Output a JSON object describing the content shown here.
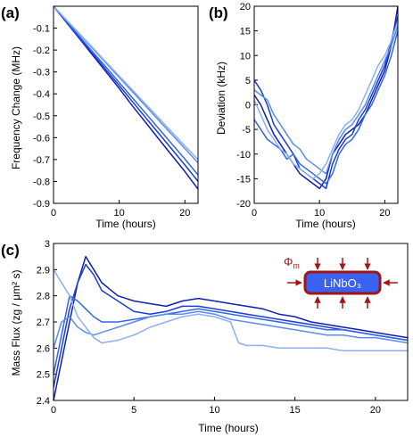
{
  "colors": {
    "series": [
      "#1020B0",
      "#1C3CD6",
      "#2F67E8",
      "#5A8CF0",
      "#8AB0F5"
    ],
    "inset_fill": "#3A62F0",
    "inset_stroke": "#A31515",
    "flux_symbol": "#A31515"
  },
  "chart_data": [
    {
      "panel_label": "(a)",
      "type": "line",
      "title": "",
      "xlabel": "Time (hours)",
      "ylabel": "Frequency Change (MHz)",
      "xlim": [
        0,
        22
      ],
      "ylim": [
        -0.9,
        0
      ],
      "xticks": [
        "0",
        "10",
        "20"
      ],
      "yticks": [
        "-0.1",
        "-0.2",
        "-0.3",
        "-0.4",
        "-0.5",
        "-0.6",
        "-0.7",
        "-0.8",
        "-0.9"
      ],
      "grid": false,
      "series": [
        {
          "x": [
            0,
            2,
            4,
            6,
            8,
            10,
            12,
            14,
            16,
            18,
            20,
            22
          ],
          "y": [
            0,
            -0.075,
            -0.15,
            -0.225,
            -0.3,
            -0.375,
            -0.455,
            -0.53,
            -0.605,
            -0.68,
            -0.755,
            -0.835
          ]
        },
        {
          "x": [
            0,
            2,
            4,
            6,
            8,
            10,
            12,
            14,
            16,
            18,
            20,
            22
          ],
          "y": [
            0,
            -0.072,
            -0.145,
            -0.217,
            -0.29,
            -0.362,
            -0.435,
            -0.508,
            -0.58,
            -0.652,
            -0.725,
            -0.8
          ]
        },
        {
          "x": [
            0,
            2,
            4,
            6,
            8,
            10,
            12,
            14,
            16,
            18,
            20,
            22
          ],
          "y": [
            0,
            -0.07,
            -0.14,
            -0.21,
            -0.278,
            -0.348,
            -0.418,
            -0.488,
            -0.558,
            -0.628,
            -0.698,
            -0.77
          ]
        },
        {
          "x": [
            0,
            2,
            4,
            6,
            8,
            10,
            12,
            14,
            16,
            18,
            20,
            22
          ],
          "y": [
            0,
            -0.065,
            -0.13,
            -0.195,
            -0.26,
            -0.325,
            -0.39,
            -0.455,
            -0.52,
            -0.585,
            -0.65,
            -0.715
          ]
        },
        {
          "x": [
            0,
            2,
            4,
            6,
            8,
            10,
            12,
            14,
            16,
            18,
            20,
            22
          ],
          "y": [
            0,
            -0.063,
            -0.127,
            -0.19,
            -0.255,
            -0.318,
            -0.382,
            -0.446,
            -0.51,
            -0.574,
            -0.638,
            -0.7
          ]
        }
      ]
    },
    {
      "panel_label": "(b)",
      "type": "line",
      "title": "",
      "xlabel": "Time (hours)",
      "ylabel": "Deviation (kHz)",
      "xlim": [
        0,
        22
      ],
      "ylim": [
        -20,
        20
      ],
      "xticks": [
        "0",
        "10",
        "20"
      ],
      "yticks": [
        "20",
        "15",
        "10",
        "5",
        "0",
        "-5",
        "-10",
        "-15",
        "-20"
      ],
      "grid": false,
      "series": [
        {
          "x": [
            0,
            1,
            2,
            3,
            4,
            5,
            6,
            7,
            8,
            9,
            10,
            11,
            12,
            13,
            14,
            15,
            16,
            17,
            18,
            19,
            20,
            21,
            22
          ],
          "y": [
            2,
            0,
            -3,
            -6,
            -8,
            -10,
            -12,
            -14,
            -15,
            -16,
            -17,
            -15,
            -10,
            -8,
            -6,
            -5,
            -4,
            -2,
            1,
            4,
            7,
            12,
            20
          ]
        },
        {
          "x": [
            0,
            1,
            2,
            3,
            4,
            5,
            6,
            7,
            8,
            9,
            10,
            11,
            12,
            13,
            14,
            15,
            16,
            17,
            18,
            19,
            20,
            21,
            22
          ],
          "y": [
            5,
            3,
            0,
            -4,
            -6,
            -8,
            -10,
            -13,
            -14,
            -15,
            -16,
            -17,
            -12,
            -9,
            -7,
            -6,
            -3,
            -1,
            2,
            5,
            8,
            13,
            18
          ]
        },
        {
          "x": [
            0,
            1,
            2,
            3,
            4,
            5,
            6,
            7,
            8,
            9,
            10,
            11,
            12,
            13,
            14,
            15,
            16,
            17,
            18,
            19,
            20,
            21,
            22
          ],
          "y": [
            -3,
            -5,
            -7,
            -8,
            -9,
            -11,
            -10,
            -12,
            -13,
            -14,
            -15,
            -16,
            -14,
            -10,
            -8,
            -7,
            -5,
            -2,
            0,
            3,
            6,
            10,
            15
          ]
        },
        {
          "x": [
            0,
            1,
            2,
            3,
            4,
            5,
            6,
            7,
            8,
            9,
            10,
            11,
            12,
            13,
            14,
            15,
            16,
            17,
            18,
            19,
            20,
            21,
            22
          ],
          "y": [
            3,
            2,
            1,
            -2,
            -4,
            -6,
            -8,
            -9,
            -11,
            -12,
            -13,
            -14,
            -10,
            -7,
            -5,
            -4,
            -2,
            0,
            3,
            6,
            9,
            12,
            16
          ]
        },
        {
          "x": [
            0,
            1,
            2,
            3,
            4,
            5,
            6,
            7,
            8,
            9,
            10,
            11,
            12,
            13,
            14,
            15,
            16,
            17,
            18,
            19,
            20,
            21,
            22
          ],
          "y": [
            1,
            -2,
            -5,
            -7,
            -9,
            -10,
            -12,
            -13,
            -14,
            -15,
            -14,
            -12,
            -9,
            -6,
            -4,
            -3,
            -1,
            2,
            5,
            8,
            10,
            13,
            17
          ]
        }
      ]
    },
    {
      "panel_label": "(c)",
      "type": "line",
      "title": "",
      "xlabel": "Time (hours)",
      "ylabel": "Mass Flux (zg / μm² s)",
      "xlim": [
        0,
        22
      ],
      "ylim": [
        2.4,
        3
      ],
      "xticks": [
        "0",
        "5",
        "10",
        "15",
        "20"
      ],
      "yticks": [
        "3",
        "2.9",
        "2.8",
        "2.7",
        "2.6",
        "2.5",
        "2.4"
      ],
      "grid": false,
      "inset": {
        "box_label": "LiNbO₃",
        "flux_symbol": "Φ",
        "flux_subscript": "m"
      },
      "series": [
        {
          "x": [
            0,
            0.5,
            1,
            1.5,
            2,
            2.5,
            3,
            4,
            5,
            6,
            7,
            8,
            9,
            10,
            11,
            12,
            13,
            14,
            15,
            16,
            17,
            18,
            19,
            20,
            21,
            22
          ],
          "y": [
            2.4,
            2.55,
            2.7,
            2.85,
            2.95,
            2.9,
            2.85,
            2.8,
            2.78,
            2.77,
            2.76,
            2.78,
            2.79,
            2.78,
            2.77,
            2.76,
            2.75,
            2.73,
            2.72,
            2.7,
            2.69,
            2.68,
            2.67,
            2.66,
            2.65,
            2.64
          ]
        },
        {
          "x": [
            0,
            0.5,
            1,
            1.5,
            2,
            2.5,
            3,
            4,
            5,
            6,
            7,
            8,
            9,
            10,
            11,
            12,
            13,
            14,
            15,
            16,
            17,
            18,
            19,
            20,
            21,
            22
          ],
          "y": [
            2.45,
            2.6,
            2.75,
            2.85,
            2.92,
            2.88,
            2.82,
            2.78,
            2.74,
            2.73,
            2.74,
            2.76,
            2.76,
            2.75,
            2.74,
            2.73,
            2.72,
            2.71,
            2.7,
            2.69,
            2.68,
            2.67,
            2.66,
            2.65,
            2.64,
            2.63
          ]
        },
        {
          "x": [
            0,
            0.5,
            1,
            1.5,
            2,
            2.5,
            3,
            4,
            5,
            6,
            7,
            8,
            9,
            10,
            11,
            12,
            13,
            14,
            15,
            16,
            17,
            18,
            19,
            20,
            21,
            22
          ],
          "y": [
            2.5,
            2.65,
            2.8,
            2.78,
            2.75,
            2.72,
            2.7,
            2.7,
            2.71,
            2.72,
            2.73,
            2.74,
            2.75,
            2.74,
            2.73,
            2.72,
            2.71,
            2.7,
            2.69,
            2.68,
            2.67,
            2.67,
            2.66,
            2.65,
            2.64,
            2.63
          ]
        },
        {
          "x": [
            0,
            0.5,
            1,
            1.5,
            2,
            2.5,
            3,
            4,
            5,
            6,
            7,
            8,
            9,
            10,
            11,
            12,
            13,
            14,
            15,
            16,
            17,
            18,
            19,
            20,
            21,
            22
          ],
          "y": [
            2.6,
            2.7,
            2.72,
            2.68,
            2.66,
            2.65,
            2.66,
            2.68,
            2.7,
            2.72,
            2.73,
            2.73,
            2.74,
            2.73,
            2.71,
            2.7,
            2.69,
            2.68,
            2.67,
            2.66,
            2.65,
            2.65,
            2.64,
            2.64,
            2.63,
            2.62
          ]
        },
        {
          "x": [
            0,
            0.5,
            1,
            1.5,
            2,
            2.5,
            3,
            4,
            5,
            6,
            7,
            8,
            9,
            10,
            11,
            11.5,
            12,
            13,
            14,
            15,
            16,
            17,
            18,
            19,
            20,
            21,
            22
          ],
          "y": [
            2.9,
            2.85,
            2.8,
            2.72,
            2.68,
            2.64,
            2.62,
            2.63,
            2.65,
            2.68,
            2.7,
            2.72,
            2.73,
            2.72,
            2.7,
            2.62,
            2.61,
            2.61,
            2.6,
            2.6,
            2.6,
            2.6,
            2.59,
            2.59,
            2.59,
            2.59,
            2.59
          ]
        }
      ]
    }
  ]
}
